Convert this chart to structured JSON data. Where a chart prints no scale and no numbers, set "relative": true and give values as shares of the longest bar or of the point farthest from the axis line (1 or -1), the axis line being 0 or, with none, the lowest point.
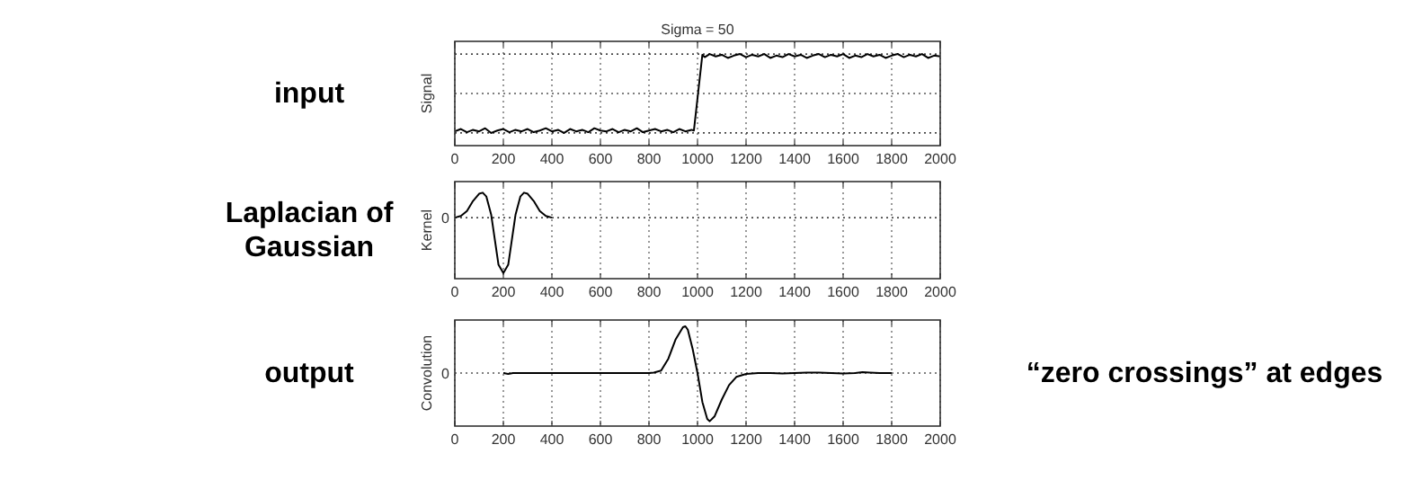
{
  "chart_data": [
    {
      "type": "line",
      "title": "Sigma = 50",
      "ylabel": "Signal",
      "relative": true,
      "annotations": [
        "input"
      ],
      "xlim": [
        0,
        2000
      ],
      "xticks": [
        0,
        200,
        400,
        600,
        800,
        1000,
        1200,
        1400,
        1600,
        1800,
        2000
      ],
      "grid": "x",
      "line_style": "solid",
      "ref_lines": [
        {
          "axis": "y",
          "value": 0,
          "line_style": "dotted",
          "color": "#000000"
        },
        {
          "axis": "y",
          "value": 0.5,
          "line_style": "dotted",
          "color": "#000000"
        },
        {
          "axis": "y",
          "value": 1,
          "line_style": "dotted",
          "color": "#000000"
        }
      ],
      "series": [
        {
          "color": "#000000",
          "x": [
            0,
            25,
            50,
            75,
            100,
            125,
            150,
            175,
            200,
            225,
            250,
            275,
            300,
            325,
            350,
            375,
            400,
            425,
            450,
            475,
            500,
            525,
            550,
            575,
            600,
            625,
            650,
            675,
            700,
            725,
            750,
            775,
            800,
            825,
            850,
            875,
            900,
            925,
            950,
            975,
            985,
            1020,
            1030,
            1050,
            1075,
            1100,
            1125,
            1150,
            1175,
            1200,
            1225,
            1250,
            1275,
            1300,
            1325,
            1350,
            1375,
            1400,
            1425,
            1450,
            1475,
            1500,
            1525,
            1550,
            1575,
            1600,
            1625,
            1650,
            1675,
            1700,
            1725,
            1750,
            1775,
            1800,
            1825,
            1850,
            1875,
            1900,
            1925,
            1950,
            1975,
            2000
          ],
          "values": [
            0.02,
            0.05,
            0.01,
            0.04,
            0.02,
            0.06,
            0.0,
            0.03,
            0.05,
            0.01,
            0.04,
            0.02,
            0.05,
            0.01,
            0.03,
            0.06,
            0.02,
            0.04,
            0.0,
            0.05,
            0.02,
            0.04,
            0.01,
            0.06,
            0.03,
            0.02,
            0.05,
            0.01,
            0.04,
            0.02,
            0.06,
            0.01,
            0.03,
            0.05,
            0.02,
            0.04,
            0.01,
            0.05,
            0.02,
            0.04,
            0.03,
            0.99,
            0.96,
            1.0,
            0.97,
            0.99,
            0.95,
            0.98,
            1.0,
            0.96,
            0.99,
            0.97,
            1.0,
            0.95,
            0.98,
            0.96,
            1.0,
            0.97,
            0.99,
            0.95,
            0.98,
            1.0,
            0.96,
            0.99,
            0.97,
            1.0,
            0.95,
            0.98,
            0.96,
            1.0,
            0.97,
            0.99,
            0.95,
            0.98,
            1.0,
            0.96,
            0.99,
            0.97,
            1.0,
            0.95,
            0.98,
            0.97
          ]
        }
      ]
    },
    {
      "type": "line",
      "ylabel": "Kernel",
      "relative": true,
      "annotations": [
        "Laplacian of Gaussian"
      ],
      "xlim": [
        0,
        2000
      ],
      "xticks": [
        0,
        200,
        400,
        600,
        800,
        1000,
        1200,
        1400,
        1600,
        1800,
        2000
      ],
      "grid": "x",
      "line_style": "solid",
      "ref_lines": [
        {
          "axis": "y",
          "value": 0,
          "label": "0",
          "line_style": "dotted",
          "color": "#000000"
        }
      ],
      "series": [
        {
          "color": "#000000",
          "x": [
            0,
            25,
            50,
            75,
            100,
            115,
            130,
            150,
            165,
            180,
            200,
            220,
            235,
            250,
            270,
            285,
            300,
            325,
            350,
            375,
            400
          ],
          "values": [
            0.0,
            0.03,
            0.12,
            0.3,
            0.43,
            0.45,
            0.38,
            0.05,
            -0.4,
            -0.85,
            -1,
            -0.85,
            -0.4,
            0.05,
            0.38,
            0.45,
            0.43,
            0.3,
            0.12,
            0.03,
            0.0
          ]
        }
      ]
    },
    {
      "type": "line",
      "ylabel": "Convolution",
      "relative": true,
      "annotations": [
        "output",
        "“zero crossings” at edges"
      ],
      "xlim": [
        0,
        2000
      ],
      "xticks": [
        0,
        200,
        400,
        600,
        800,
        1000,
        1200,
        1400,
        1600,
        1800,
        2000
      ],
      "grid": "x",
      "line_style": "solid",
      "ref_lines": [
        {
          "axis": "y",
          "value": 0,
          "label": "0",
          "line_style": "dotted",
          "color": "#000000"
        }
      ],
      "series": [
        {
          "color": "#000000",
          "x": [
            200,
            220,
            240,
            300,
            400,
            500,
            600,
            700,
            800,
            820,
            850,
            880,
            910,
            940,
            950,
            960,
            980,
            1000,
            1020,
            1040,
            1050,
            1070,
            1100,
            1130,
            1160,
            1200,
            1250,
            1300,
            1350,
            1400,
            1450,
            1500,
            1550,
            1600,
            1650,
            1680,
            1710,
            1750,
            1800
          ],
          "values": [
            0.0,
            -0.02,
            0.0,
            0.0,
            0.0,
            0.0,
            0.0,
            0.0,
            0.0,
            0.01,
            0.05,
            0.3,
            0.7,
            0.95,
            0.97,
            0.9,
            0.5,
            0.0,
            -0.6,
            -0.95,
            -1,
            -0.9,
            -0.55,
            -0.25,
            -0.08,
            -0.02,
            0.0,
            0.0,
            -0.01,
            0.0,
            0.01,
            0.01,
            0.0,
            -0.01,
            0.0,
            0.02,
            0.01,
            0.0,
            0.0
          ]
        }
      ]
    }
  ]
}
